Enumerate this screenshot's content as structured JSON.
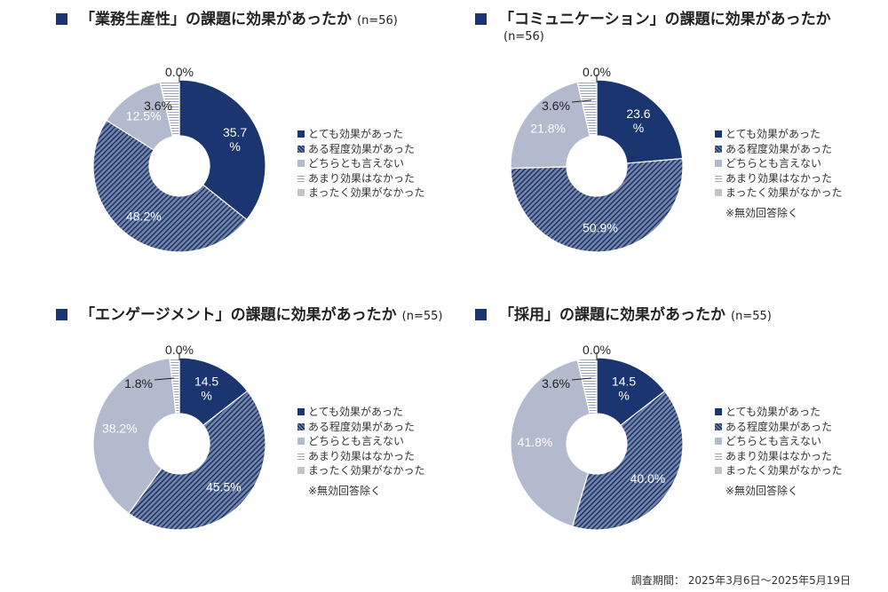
{
  "legend_labels": [
    "とても効果があった",
    "ある程度効果があった",
    "どちらとも言えない",
    "あまり効果はなかった",
    "まったく効果がなかった"
  ],
  "colors": {
    "very": "#1a3570",
    "somewhat": "#7486ad",
    "somewhat_stripe": "#1f3566",
    "neutral": "#b4bace",
    "not_much": "#ffffff",
    "not_much_stripe": "#9aa3bf",
    "none": "#c4c4c4",
    "title_square": "#1a3570"
  },
  "chart_data": [
    {
      "type": "pie",
      "title": "「業務生産性」の課題に効果があったか",
      "n_label": "(n=56)",
      "categories": [
        "とても効果があった",
        "ある程度効果があった",
        "どちらとも言えない",
        "あまり効果はなかった",
        "まったく効果がなかった"
      ],
      "values": [
        35.7,
        48.2,
        12.5,
        3.6,
        0.0
      ],
      "labels": [
        "35.7\n%",
        "48.2%",
        "12.5%",
        "3.6%",
        "0.0%"
      ],
      "note": ""
    },
    {
      "type": "pie",
      "title": "「コミュニケーション」の課題に効果があったか",
      "n_label": "(n=56)",
      "categories": [
        "とても効果があった",
        "ある程度効果があった",
        "どちらとも言えない",
        "あまり効果はなかった",
        "まったく効果がなかった"
      ],
      "values": [
        23.6,
        50.9,
        21.8,
        3.6,
        0.0
      ],
      "labels": [
        "23.6\n%",
        "50.9%",
        "21.8%",
        "3.6%",
        "0.0%"
      ],
      "note": "※無効回答除く"
    },
    {
      "type": "pie",
      "title": "「エンゲージメント」の課題に効果があったか",
      "n_label": "(n=55)",
      "categories": [
        "とても効果があった",
        "ある程度効果があった",
        "どちらとも言えない",
        "あまり効果はなかった",
        "まったく効果がなかった"
      ],
      "values": [
        14.5,
        45.5,
        38.2,
        1.8,
        0.0
      ],
      "labels": [
        "14.5\n%",
        "45.5%",
        "38.2%",
        "1.8%",
        "0.0%"
      ],
      "note": "※無効回答除く"
    },
    {
      "type": "pie",
      "title": "「採用」の課題に効果があったか",
      "n_label": "(n=55)",
      "categories": [
        "とても効果があった",
        "ある程度効果があった",
        "どちらとも言えない",
        "あまり効果はなかった",
        "まったく効果がなかった"
      ],
      "values": [
        14.5,
        40.0,
        41.8,
        3.6,
        0.0
      ],
      "labels": [
        "14.5\n%",
        "40.0%",
        "41.8%",
        "3.6%",
        "0.0%"
      ],
      "note": "※無効回答除く"
    }
  ],
  "footer": "調査期間： 2025年3月6日～2025年5月19日"
}
